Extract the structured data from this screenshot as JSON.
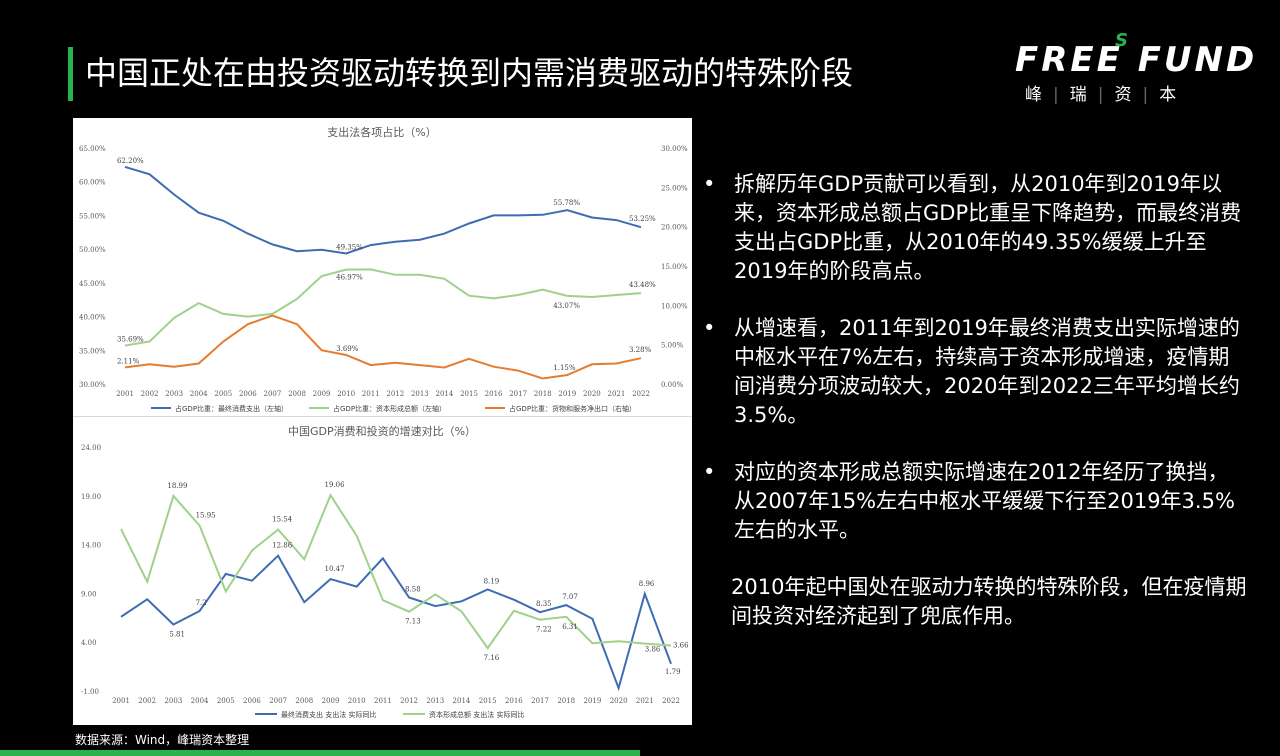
{
  "page": {
    "title": "中国正处在由投资驱动转换到内需消费驱动的特殊阶段",
    "source": "数据来源：Wind，峰瑞资本整理"
  },
  "logo": {
    "main": "FREE FUND",
    "s": "S",
    "sub": [
      "峰",
      "瑞",
      "资",
      "本"
    ]
  },
  "colors": {
    "blue": "#3e6cb3",
    "green": "#9fd18a",
    "orange": "#e67c2f",
    "accent": "#2bb24c"
  },
  "bullets": [
    "拆解历年GDP贡献可以看到，从2010年到2019年以来，资本形成总额占GDP比重呈下降趋势，而最终消费支出占GDP比重，从2010年的49.35%缓缓上升至2019年的阶段高点。",
    "从增速看，2011年到2019年最终消费支出实际增速的中枢水平在7%左右，持续高于资本形成增速，疫情期间消费分项波动较大，2020年到2022三年平均增长约3.5%。",
    "对应的资本形成总额实际增速在2012年经历了换挡，从2007年15%左右中枢水平缓缓下行至2019年3.5%左右的水平。"
  ],
  "summary": "2010年起中国处在驱动力转换的特殊阶段，但在疫情期间投资对经济起到了兜底作用。",
  "chart_data": [
    {
      "type": "line",
      "title": "支出法各项占比（%）",
      "x": [
        "2001",
        "2002",
        "2003",
        "2004",
        "2005",
        "2006",
        "2007",
        "2008",
        "2009",
        "2010",
        "2011",
        "2012",
        "2013",
        "2014",
        "2015",
        "2016",
        "2017",
        "2018",
        "2019",
        "2020",
        "2021",
        "2022"
      ],
      "ylim_left": [
        30,
        65
      ],
      "ylim_right": [
        0,
        30
      ],
      "yticks_left": [
        "30.00%",
        "35.00%",
        "40.00%",
        "45.00%",
        "50.00%",
        "55.00%",
        "60.00%",
        "65.00%"
      ],
      "yticks_right": [
        "0.00%",
        "5.00%",
        "10.00%",
        "15.00%",
        "20.00%",
        "25.00%",
        "30.00%"
      ],
      "series": [
        {
          "name": "占GDP比重：最终消费支出（左轴）",
          "axis": "left",
          "color": "#3e6cb3",
          "values": [
            62.2,
            61.1,
            58.1,
            55.4,
            54.2,
            52.3,
            50.7,
            49.7,
            49.9,
            49.35,
            50.6,
            51.1,
            51.4,
            52.3,
            53.8,
            55.0,
            55.0,
            55.1,
            55.78,
            54.7,
            54.3,
            53.25
          ]
        },
        {
          "name": "占GDP比重：资本形成总额（左轴）",
          "axis": "left",
          "color": "#9fd18a",
          "values": [
            35.69,
            36.3,
            39.8,
            42.0,
            40.4,
            40.0,
            40.4,
            42.6,
            46.0,
            46.97,
            47.0,
            46.2,
            46.2,
            45.6,
            43.1,
            42.7,
            43.2,
            44.0,
            43.07,
            42.9,
            43.2,
            43.48
          ]
        },
        {
          "name": "占GDP比重：货物和服务净出口（右轴）",
          "axis": "right",
          "color": "#e67c2f",
          "values": [
            2.11,
            2.5,
            2.2,
            2.6,
            5.4,
            7.6,
            8.7,
            7.6,
            4.3,
            3.69,
            2.4,
            2.7,
            2.4,
            2.1,
            3.2,
            2.2,
            1.7,
            0.7,
            1.15,
            2.5,
            2.6,
            3.28
          ]
        }
      ],
      "labels": [
        {
          "text": "62.20%"
        },
        {
          "text": "35.69%"
        },
        {
          "text": "2.11%"
        },
        {
          "text": "49.35%"
        },
        {
          "text": "46.97%"
        },
        {
          "text": "3.69%"
        },
        {
          "text": "55.78%"
        },
        {
          "text": "53.25%"
        },
        {
          "text": "43.07%"
        },
        {
          "text": "43.48%"
        },
        {
          "text": "1.15%"
        },
        {
          "text": "3.28%"
        }
      ]
    },
    {
      "type": "line",
      "title": "中国GDP消费和投资的增速对比（%）",
      "x": [
        "2001",
        "2002",
        "2003",
        "2004",
        "2005",
        "2006",
        "2007",
        "2008",
        "2009",
        "2010",
        "2011",
        "2012",
        "2013",
        "2014",
        "2015",
        "2016",
        "2017",
        "2018",
        "2019",
        "2020",
        "2021",
        "2022"
      ],
      "ylim": [
        -1,
        24
      ],
      "yticks": [
        "-1.00",
        "4.00",
        "9.00",
        "14.00",
        "19.00",
        "24.00"
      ],
      "series": [
        {
          "name": "最终消费支出 支出法 实际同比",
          "color": "#3e6cb3",
          "values": [
            6.6,
            8.4,
            5.81,
            7.2,
            11.0,
            10.3,
            12.86,
            8.1,
            10.47,
            9.7,
            12.6,
            8.58,
            7.7,
            8.19,
            9.4,
            8.35,
            7.07,
            7.8,
            6.4,
            -0.7,
            8.96,
            1.79
          ]
        },
        {
          "name": "资本形成总额 支出法 实际同比",
          "color": "#9fd18a",
          "values": [
            15.6,
            10.2,
            18.99,
            15.95,
            9.2,
            13.4,
            15.54,
            12.5,
            19.06,
            14.9,
            8.3,
            7.13,
            8.9,
            7.16,
            3.4,
            7.22,
            6.31,
            6.6,
            3.9,
            4.1,
            3.86,
            3.66
          ]
        }
      ],
      "labels": [
        {
          "text": "18.99"
        },
        {
          "text": "15.95"
        },
        {
          "text": "15.54"
        },
        {
          "text": "12.86"
        },
        {
          "text": "19.06"
        },
        {
          "text": "10.47"
        },
        {
          "text": "5.81"
        },
        {
          "text": "7.2"
        },
        {
          "text": "8.58"
        },
        {
          "text": "7.13"
        },
        {
          "text": "8.19"
        },
        {
          "text": "7.16"
        },
        {
          "text": "8.35"
        },
        {
          "text": "7.22"
        },
        {
          "text": "7.07"
        },
        {
          "text": "6.31"
        },
        {
          "text": "8.96"
        },
        {
          "text": "3.86"
        },
        {
          "text": "3.66"
        },
        {
          "text": "1.79"
        }
      ]
    }
  ]
}
